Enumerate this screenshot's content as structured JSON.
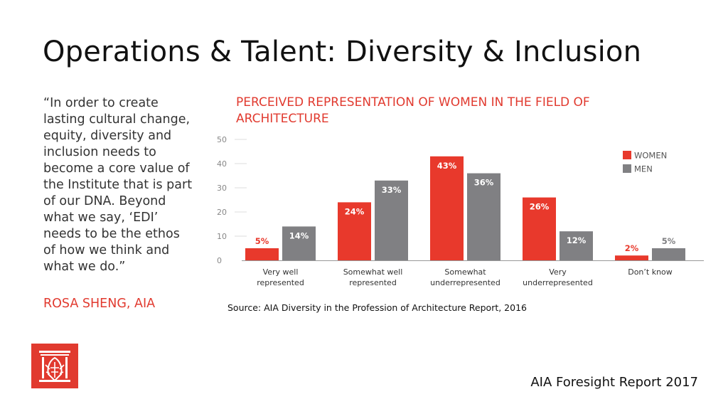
{
  "slide": {
    "title": "Operations & Talent: Diversity & Inclusion",
    "quote": "“In order to create lasting cultural change, equity, diversity and inclusion needs to become a core value of the Institute that is part of our DNA. Beyond what we say, ‘EDI’ needs to be the ethos of how we think and what we do.”",
    "author": "ROSA SHENG, AIA",
    "source": "Source: AIA Diversity in the Profession of Architecture Report, 2016",
    "footer": "AIA Foresight Report 2017",
    "logo_icon": "aia-eagle-logo-icon"
  },
  "colors": {
    "accent": "#e13a2f",
    "women": "#e8392c",
    "men": "#808083",
    "axis_text": "#888888"
  },
  "chart_data": {
    "type": "bar",
    "title": "PERCEIVED REPRESENTATION OF WOMEN IN THE FIELD OF ARCHITECTURE",
    "categories": [
      [
        "Very well",
        "represented"
      ],
      [
        "Somewhat well",
        "represented"
      ],
      [
        "Somewhat",
        "underrepresented"
      ],
      [
        "Very",
        "underrepresented"
      ],
      [
        "Don’t know"
      ]
    ],
    "series": [
      {
        "name": "WOMEN",
        "values": [
          5,
          24,
          43,
          26,
          2
        ],
        "labels": [
          "5%",
          "24%",
          "43%",
          "26%",
          "2%"
        ]
      },
      {
        "name": "MEN",
        "values": [
          14,
          33,
          36,
          12,
          5
        ],
        "labels": [
          "14%",
          "33%",
          "36%",
          "12%",
          "5%"
        ]
      }
    ],
    "yticks": [
      "0",
      "10",
      "20",
      "30",
      "40",
      "50"
    ],
    "ylim": [
      0,
      50
    ],
    "legend_position": "top-right",
    "grid": false
  }
}
